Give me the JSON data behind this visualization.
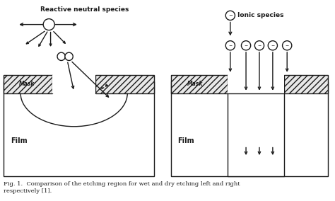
{
  "caption": "Fig. 1.  Comparison of the etching region for wet and dry etching left and right\nrespectively [1].",
  "bg_color": "#ffffff",
  "line_color": "#1a1a1a",
  "left_label_reactive": "Reactive neutral species",
  "left_label_film": "Film",
  "left_label_mask": "Mask",
  "right_label_ionic": "Ionic species",
  "right_label_film": "Film",
  "right_label_mask": "Mask",
  "figsize": [
    4.74,
    2.84
  ],
  "dpi": 100
}
